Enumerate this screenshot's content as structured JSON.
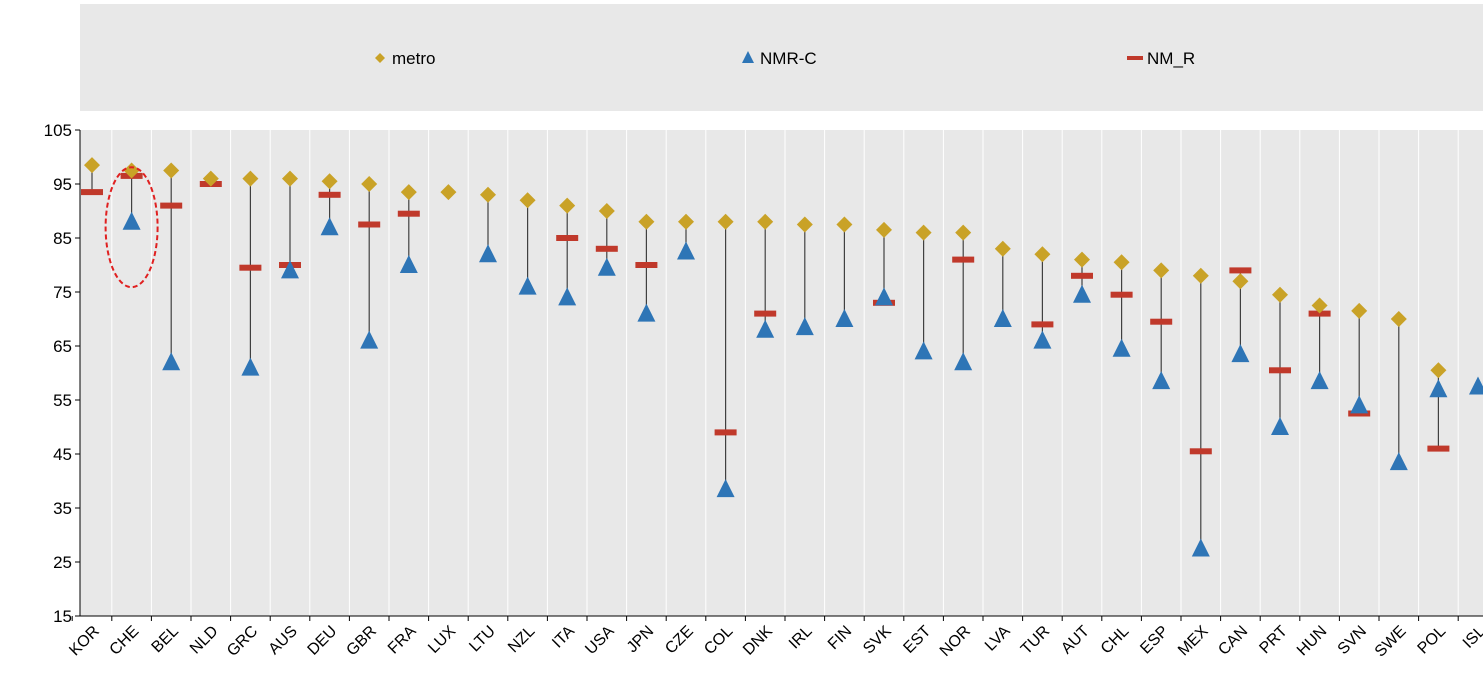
{
  "chart_data": {
    "type": "scatter",
    "title": "",
    "xlabel": "",
    "ylabel": "",
    "ylim": [
      15,
      105
    ],
    "yticks": [
      15,
      25,
      35,
      45,
      55,
      65,
      75,
      85,
      95,
      105
    ],
    "grid": "vertical",
    "legend": {
      "position": "top",
      "entries": [
        "metro",
        "NMR-C",
        "NM_R"
      ]
    },
    "categories": [
      "KOR",
      "CHE",
      "BEL",
      "NLD",
      "GRC",
      "AUS",
      "DEU",
      "GBR",
      "FRA",
      "LUX",
      "LTU",
      "NZL",
      "ITA",
      "USA",
      "JPN",
      "CZE",
      "COL",
      "DNK",
      "IRL",
      "FIN",
      "SVK",
      "EST",
      "NOR",
      "LVA",
      "TUR",
      "AUT",
      "CHL",
      "ESP",
      "MEX",
      "CAN",
      "PRT",
      "HUN",
      "SVN",
      "SWE",
      "POL",
      "ISL"
    ],
    "series": [
      {
        "name": "metro",
        "marker": "diamond",
        "color": "#C9A227",
        "values": [
          98.5,
          97.5,
          97.5,
          96,
          96,
          96,
          95.5,
          95,
          93.5,
          93.5,
          93,
          92,
          91,
          90,
          88,
          88,
          88,
          88,
          87.5,
          87.5,
          86.5,
          86,
          86,
          83,
          82,
          81,
          80.5,
          79,
          78,
          77,
          74.5,
          72.5,
          71.5,
          70,
          60.5,
          null
        ]
      },
      {
        "name": "NMR-C",
        "marker": "triangle",
        "color": "#2E75B6",
        "values": [
          null,
          88,
          62,
          null,
          61,
          79,
          87,
          66,
          80,
          null,
          82,
          76,
          74,
          79.5,
          71,
          82.5,
          38.5,
          68,
          68.5,
          70,
          74,
          64,
          62,
          70,
          66,
          74.5,
          64.5,
          58.5,
          27.5,
          63.5,
          50,
          58.5,
          54,
          43.5,
          57,
          57.5
        ]
      },
      {
        "name": "NM_R",
        "marker": "dash",
        "color": "#C0392B",
        "values": [
          93.5,
          96.5,
          91,
          95,
          79.5,
          80,
          93,
          87.5,
          89.5,
          null,
          null,
          null,
          85,
          83,
          80,
          null,
          49,
          71,
          null,
          null,
          73,
          null,
          81,
          null,
          69,
          78,
          74.5,
          69.5,
          45.5,
          79,
          60.5,
          71,
          52.5,
          null,
          46,
          null
        ]
      }
    ],
    "annotation": {
      "type": "dashed-ellipse",
      "category": "CHE",
      "color": "#E02020"
    }
  }
}
